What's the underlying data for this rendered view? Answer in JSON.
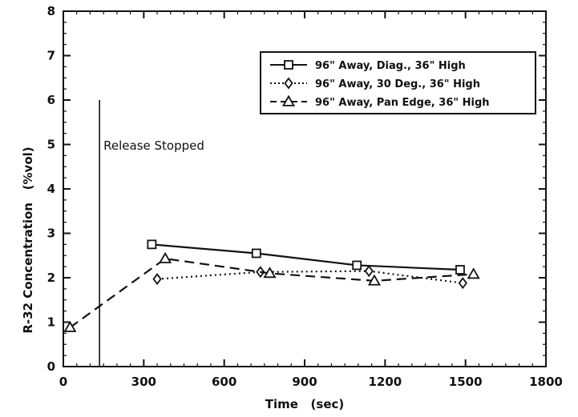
{
  "chart_data": {
    "type": "line",
    "title": "",
    "xlabel": "Time   (sec)",
    "ylabel": "R-32 Concentration   (%vol)",
    "xlim": [
      0,
      1800
    ],
    "ylim": [
      0,
      8
    ],
    "xticks": [
      0,
      300,
      600,
      900,
      1200,
      1500,
      1800
    ],
    "yticks": [
      0,
      1,
      2,
      3,
      4,
      5,
      6,
      7,
      8
    ],
    "legend_position": "top-right",
    "grid": false,
    "series": [
      {
        "name": "96\" Away, Diag., 36\" High",
        "marker": "square",
        "line_style": "solid",
        "x": [
          330,
          720,
          1095,
          1480
        ],
        "y": [
          2.75,
          2.55,
          2.28,
          2.18
        ]
      },
      {
        "name": "96\" Away, 30 Deg., 36\" High",
        "marker": "diamond",
        "line_style": "dotted",
        "x": [
          350,
          735,
          1140,
          1490
        ],
        "y": [
          1.97,
          2.13,
          2.15,
          1.88
        ]
      },
      {
        "name": "96\" Away, Pan Edge, 36\" High",
        "marker": "triangle",
        "line_style": "dashed",
        "x": [
          25,
          380,
          770,
          1160,
          1530
        ],
        "y": [
          0.88,
          2.43,
          2.1,
          1.93,
          2.08
        ]
      }
    ],
    "annotations": [
      {
        "text": "Release Stopped",
        "x": 135,
        "type": "vertical-line"
      }
    ]
  }
}
